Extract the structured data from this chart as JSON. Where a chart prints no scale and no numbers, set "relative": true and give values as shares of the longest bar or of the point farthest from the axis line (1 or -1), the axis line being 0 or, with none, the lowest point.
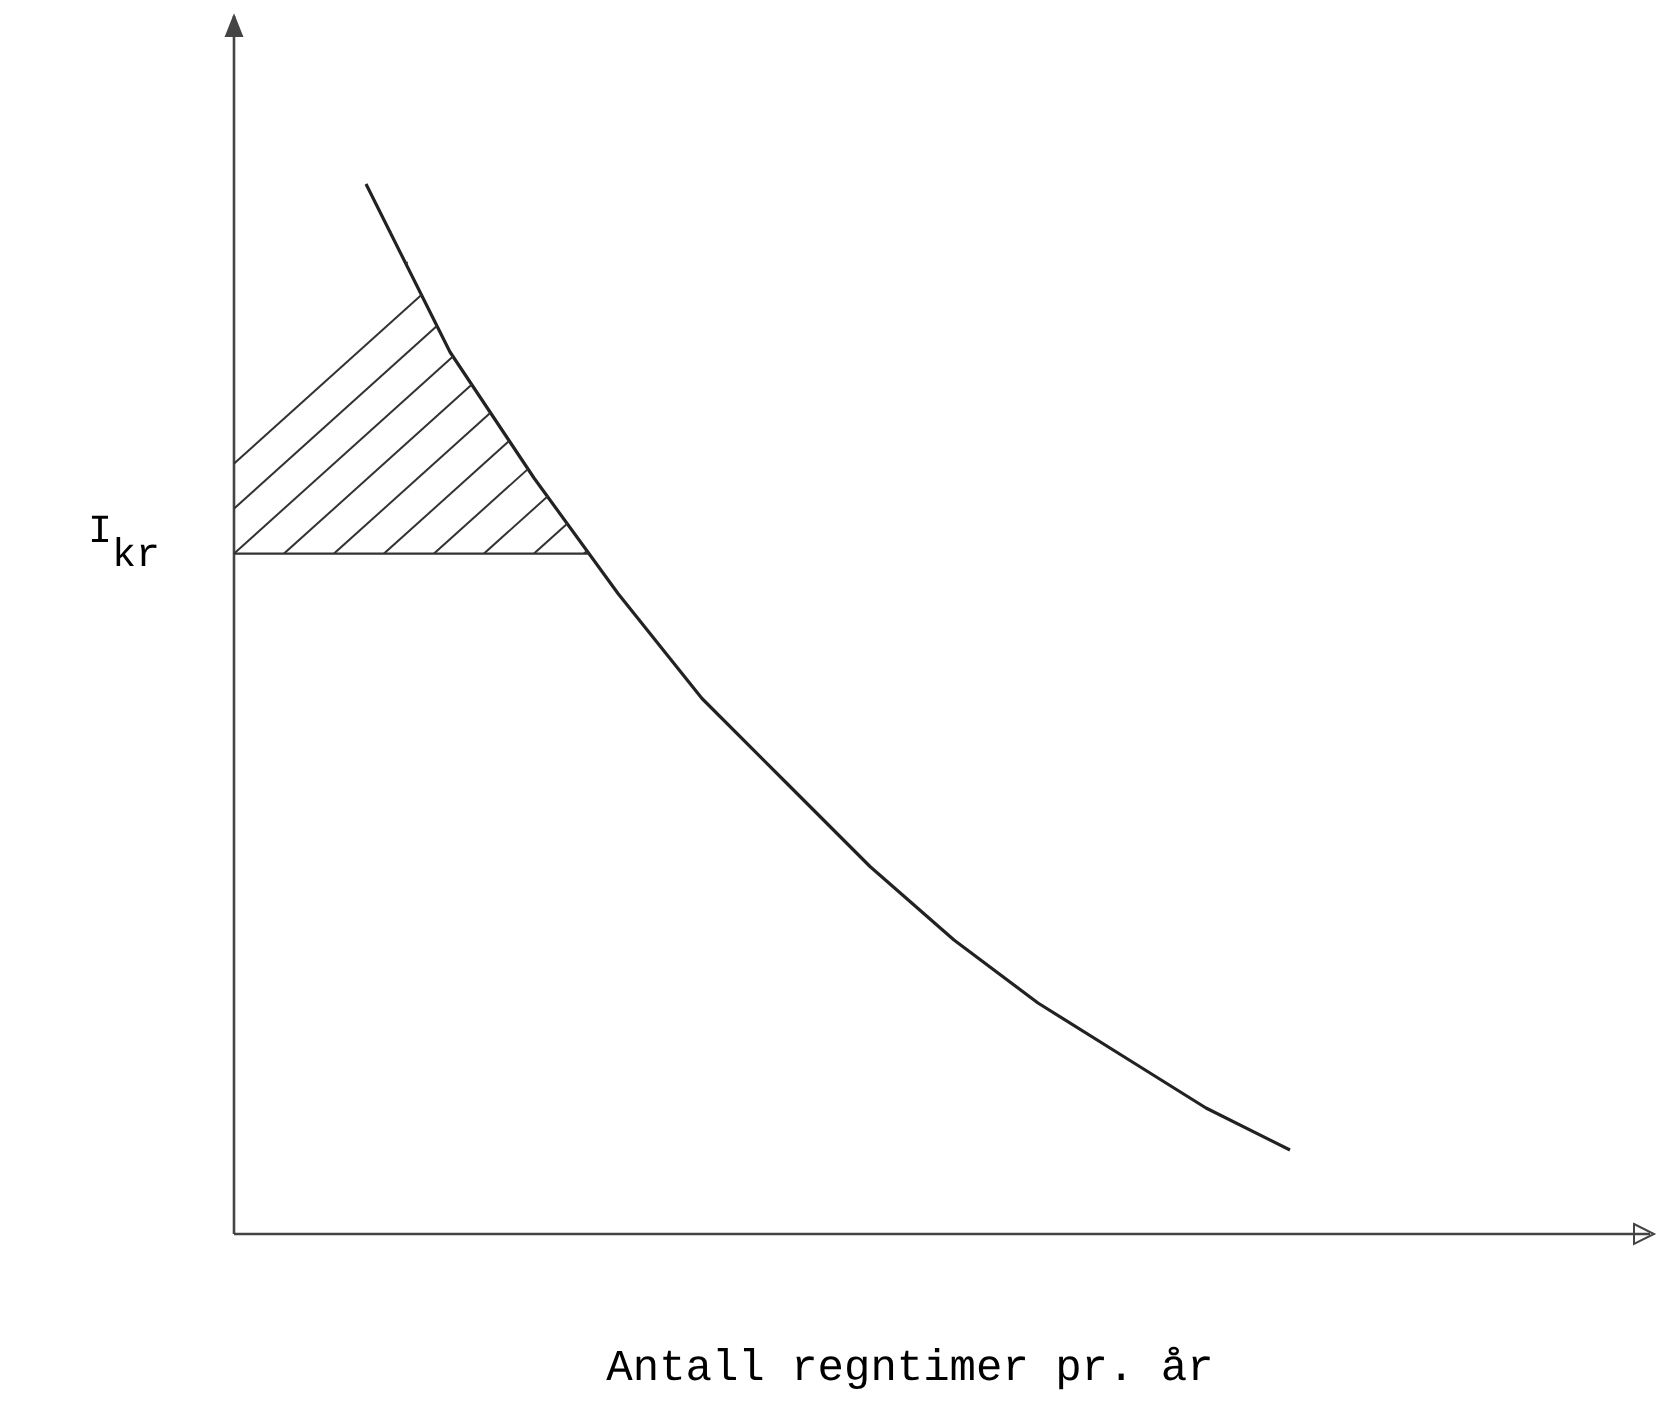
{
  "chart_data": {
    "type": "line",
    "relative": true,
    "xlabel": "Antall regntimer pr. år",
    "categories": [
      null,
      null,
      null,
      null,
      null,
      null,
      null,
      null,
      null,
      null,
      null,
      null
    ],
    "series": [
      {
        "color": "#222222",
        "values": [
          1,
          0.84,
          0.72,
          0.61,
          0.51,
          0.43,
          0.35,
          0.28,
          0.22,
          0.17,
          0.12,
          0.08
        ]
      }
    ],
    "ref_lines": [
      {
        "axis": "y",
        "value": 0.648,
        "label": "I$_{kr}$",
        "color": "#333333",
        "line_style": "solid"
      }
    ],
    "marker": "none"
  }
}
